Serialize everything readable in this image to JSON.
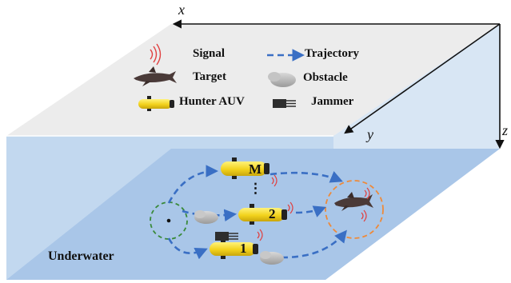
{
  "axes": {
    "x": "x",
    "y": "y",
    "z": "z"
  },
  "legend": {
    "signal": "Signal",
    "trajectory": "Trajectory",
    "target": "Target",
    "obstacle": "Obstacle",
    "hunter": "Hunter AUV",
    "jammer": "Jammer"
  },
  "auvs": {
    "top": "M",
    "dots": "⋮",
    "middle": "2",
    "bottom": "1"
  },
  "region": "Underwater",
  "colors": {
    "top_face": "#ececec",
    "water_front": "#c2d8ef",
    "water_bottom": "#a9c6e8",
    "trajectory": "#3a6fc4",
    "start_circle": "#3a8a3a",
    "target_circle": "#ee8a3a",
    "signal": "#e04040",
    "auv_body": "#f2d21c"
  }
}
